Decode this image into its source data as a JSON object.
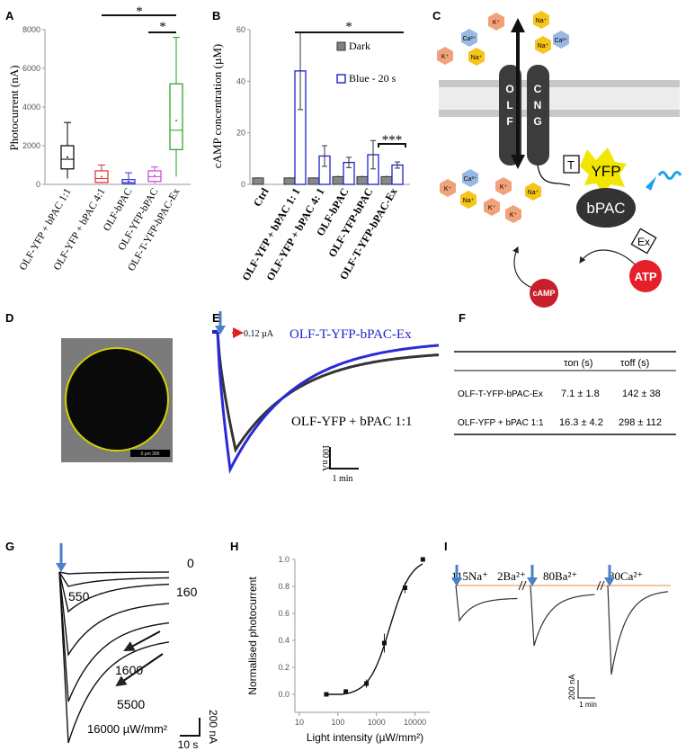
{
  "panels": {
    "A": "A",
    "B": "B",
    "C": "C",
    "D": "D",
    "E": "E",
    "F": "F",
    "G": "G",
    "H": "H",
    "I": "I"
  },
  "chart_data": [
    {
      "panel": "A",
      "type": "box",
      "ylabel": "Photocurrent (nA)",
      "ylim": [
        0,
        8000
      ],
      "yticks": [
        "0",
        "2000",
        "4000",
        "6000",
        "8000"
      ],
      "categories": [
        "OLF-YFP + bPAC 1:1",
        "OLF-YFP + bPAC 4:1",
        "OLF-bPAC",
        "OLF-YFP-bPAC",
        "OLF-T-YFP-bPAC-Ex"
      ],
      "colors": [
        "#000000",
        "#e03030",
        "#3030d0",
        "#d040d0",
        "#20a020"
      ],
      "boxes": [
        {
          "min": 300,
          "q1": 800,
          "median": 1300,
          "q3": 2000,
          "max": 3200,
          "mean": 1400
        },
        {
          "min": 50,
          "q1": 100,
          "median": 300,
          "q3": 700,
          "max": 1000,
          "mean": 400
        },
        {
          "min": 0,
          "q1": 30,
          "median": 100,
          "q3": 250,
          "max": 600,
          "mean": 150
        },
        {
          "min": 50,
          "q1": 150,
          "median": 400,
          "q3": 700,
          "max": 900,
          "mean": 450
        },
        {
          "min": 400,
          "q1": 1800,
          "median": 2800,
          "q3": 5200,
          "max": 7600,
          "mean": 3300
        }
      ],
      "significance": [
        {
          "from": 1,
          "to": 4,
          "label": "*"
        },
        {
          "from": 3,
          "to": 4,
          "label": "*"
        }
      ]
    },
    {
      "panel": "B",
      "type": "bar",
      "ylabel": "cAMP concentration  (µM)",
      "ylim": [
        0,
        60
      ],
      "yticks": [
        "0",
        "20",
        "40",
        "60"
      ],
      "categories": [
        "Ctrl",
        "OLF-YFP + bPAC 1:  1",
        "OLF-YFP + bPAC 4:  1",
        "OLF-bPAC",
        "OLF-YFP-bPAC",
        "OLF-T-YFP-bPAC-Ex"
      ],
      "series": [
        {
          "name": "Dark",
          "values": [
            2.5,
            2.5,
            2.5,
            3,
            3,
            3
          ],
          "errors": [
            0.3,
            0.3,
            0.3,
            0.4,
            0.4,
            0.4
          ]
        },
        {
          "name": "Blue - 20 s",
          "values": [
            null,
            44,
            11,
            8.5,
            11.5,
            7.5
          ],
          "errors": [
            null,
            15,
            4,
            2,
            5.5,
            1.2
          ]
        }
      ],
      "significance": [
        {
          "from": 1,
          "to": 5,
          "label": "*"
        },
        {
          "from": 5,
          "to": 5,
          "label": "***"
        }
      ]
    },
    {
      "panel": "E",
      "type": "line",
      "series": [
        {
          "name": "OLF-T-YFP-bPAC-Ex"
        },
        {
          "name": "OLF-YFP + bPAC 1:1"
        }
      ],
      "annotation": "0.12 µA",
      "scalebar_y": "100 nA",
      "scalebar_x": "1 min"
    },
    {
      "panel": "G",
      "type": "line",
      "intensities": [
        "0",
        "160",
        "550",
        "1600",
        "5500",
        "16000 µW/mm²"
      ],
      "scalebar_y": "200 nA",
      "scalebar_x": "10 s"
    },
    {
      "panel": "H",
      "type": "scatter",
      "xlabel": "Light intensity (µW/mm²)",
      "ylabel": "Normalised photocurrent",
      "xscale": "log",
      "xticks": [
        "10",
        "100",
        "1000",
        "10000"
      ],
      "yticks": [
        "0.0",
        "0.2",
        "0.4",
        "0.6",
        "0.8",
        "1.0"
      ],
      "ylim": [
        0,
        1.0
      ],
      "x": [
        50,
        160,
        550,
        1600,
        5500,
        16000
      ],
      "y": [
        0.0,
        0.02,
        0.08,
        0.38,
        0.79,
        1.0
      ],
      "errors": [
        0.01,
        0.02,
        0.03,
        0.07,
        0.04,
        0.01
      ]
    },
    {
      "panel": "I",
      "type": "line",
      "conditions": [
        "115Na⁺",
        "2Ba²⁺",
        "80Ba²⁺",
        "80Ca²⁺"
      ],
      "scalebar_y": "200 nA",
      "scalebar_x": "1 min"
    }
  ],
  "panelC": {
    "channel_labels": [
      "O",
      "L",
      "F",
      "C",
      "N",
      "G"
    ],
    "ions_top": [
      "K⁺",
      "Ca²⁺",
      "K⁺",
      "Na⁺",
      "Na⁺",
      "Ca²⁺",
      "K⁺",
      "Na⁺",
      "Na⁺"
    ],
    "ions_bottom": [
      "K⁺",
      "Ca²⁺",
      "Na⁺",
      "K⁺",
      "K⁺",
      "K⁺",
      "Na⁺"
    ],
    "t_tag": "T",
    "yfp": "YFP",
    "bpac": "bPAC",
    "ex_tag": "Ex",
    "camp": "cAMP",
    "atp": "ATP"
  },
  "panelD": {
    "scale_text": "0          µm          300"
  },
  "panelF": {
    "headers": [
      "τon  (s)",
      "τoff  (s)"
    ],
    "rows": [
      {
        "name": "OLF-T-YFP-bPAC-Ex",
        "ton": "7.1 ± 1.8",
        "toff": "142 ± 38"
      },
      {
        "name": "OLF-YFP + bPAC 1:1",
        "ton": "16.3 ± 4.2",
        "toff": "298 ± 112"
      }
    ]
  }
}
